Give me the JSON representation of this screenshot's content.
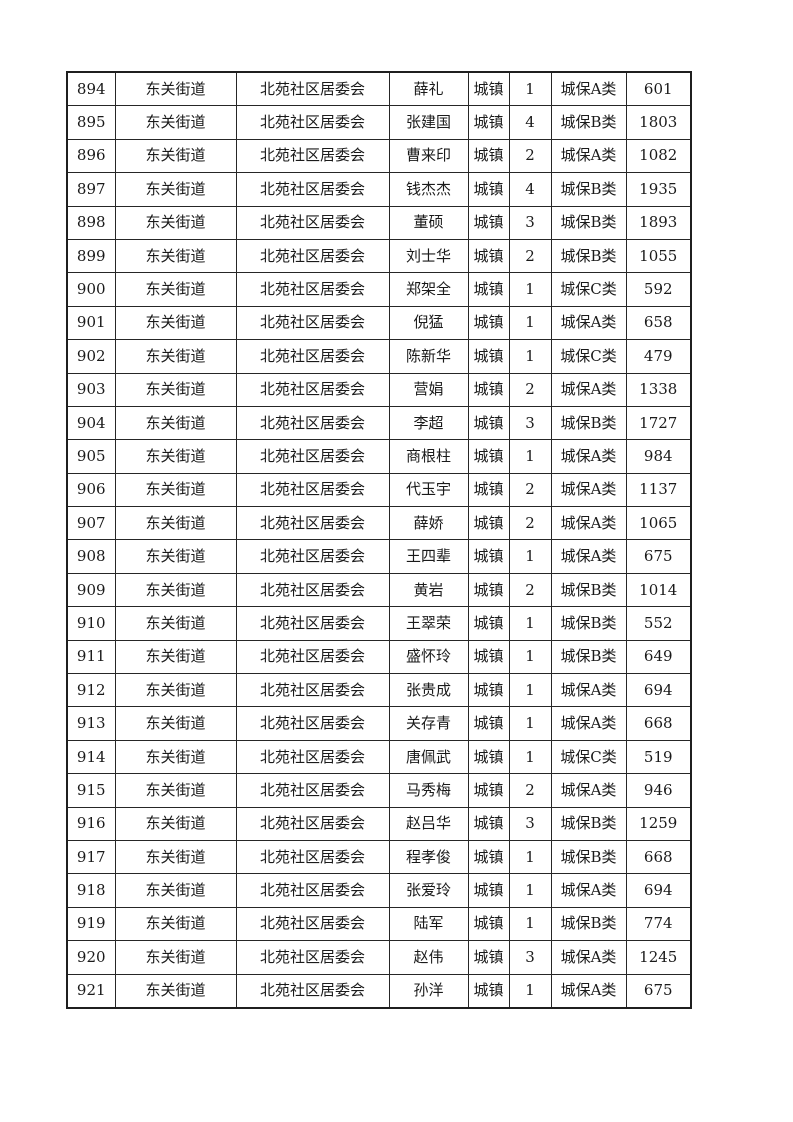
{
  "table": {
    "rows": [
      {
        "cells": [
          "894",
          "东关街道",
          "北苑社区居委会",
          "薛礼",
          "城镇",
          "1",
          "城保A类",
          "601"
        ]
      },
      {
        "cells": [
          "895",
          "东关街道",
          "北苑社区居委会",
          "张建国",
          "城镇",
          "4",
          "城保B类",
          "1803"
        ]
      },
      {
        "cells": [
          "896",
          "东关街道",
          "北苑社区居委会",
          "曹来印",
          "城镇",
          "2",
          "城保A类",
          "1082"
        ]
      },
      {
        "cells": [
          "897",
          "东关街道",
          "北苑社区居委会",
          "钱杰杰",
          "城镇",
          "4",
          "城保B类",
          "1935"
        ]
      },
      {
        "cells": [
          "898",
          "东关街道",
          "北苑社区居委会",
          "董硕",
          "城镇",
          "3",
          "城保B类",
          "1893"
        ]
      },
      {
        "cells": [
          "899",
          "东关街道",
          "北苑社区居委会",
          "刘士华",
          "城镇",
          "2",
          "城保B类",
          "1055"
        ]
      },
      {
        "cells": [
          "900",
          "东关街道",
          "北苑社区居委会",
          "郑架全",
          "城镇",
          "1",
          "城保C类",
          "592"
        ]
      },
      {
        "cells": [
          "901",
          "东关街道",
          "北苑社区居委会",
          "倪猛",
          "城镇",
          "1",
          "城保A类",
          "658"
        ]
      },
      {
        "cells": [
          "902",
          "东关街道",
          "北苑社区居委会",
          "陈新华",
          "城镇",
          "1",
          "城保C类",
          "479"
        ]
      },
      {
        "cells": [
          "903",
          "东关街道",
          "北苑社区居委会",
          "营娟",
          "城镇",
          "2",
          "城保A类",
          "1338"
        ]
      },
      {
        "cells": [
          "904",
          "东关街道",
          "北苑社区居委会",
          "李超",
          "城镇",
          "3",
          "城保B类",
          "1727"
        ]
      },
      {
        "cells": [
          "905",
          "东关街道",
          "北苑社区居委会",
          "商根柱",
          "城镇",
          "1",
          "城保A类",
          "984"
        ]
      },
      {
        "cells": [
          "906",
          "东关街道",
          "北苑社区居委会",
          "代玉宇",
          "城镇",
          "2",
          "城保A类",
          "1137"
        ]
      },
      {
        "cells": [
          "907",
          "东关街道",
          "北苑社区居委会",
          "薛娇",
          "城镇",
          "2",
          "城保A类",
          "1065"
        ]
      },
      {
        "cells": [
          "908",
          "东关街道",
          "北苑社区居委会",
          "王四辈",
          "城镇",
          "1",
          "城保A类",
          "675"
        ]
      },
      {
        "cells": [
          "909",
          "东关街道",
          "北苑社区居委会",
          "黄岩",
          "城镇",
          "2",
          "城保B类",
          "1014"
        ]
      },
      {
        "cells": [
          "910",
          "东关街道",
          "北苑社区居委会",
          "王翠荣",
          "城镇",
          "1",
          "城保B类",
          "552"
        ]
      },
      {
        "cells": [
          "911",
          "东关街道",
          "北苑社区居委会",
          "盛怀玲",
          "城镇",
          "1",
          "城保B类",
          "649"
        ]
      },
      {
        "cells": [
          "912",
          "东关街道",
          "北苑社区居委会",
          "张贵成",
          "城镇",
          "1",
          "城保A类",
          "694"
        ]
      },
      {
        "cells": [
          "913",
          "东关街道",
          "北苑社区居委会",
          "关存青",
          "城镇",
          "1",
          "城保A类",
          "668"
        ]
      },
      {
        "cells": [
          "914",
          "东关街道",
          "北苑社区居委会",
          "唐佩武",
          "城镇",
          "1",
          "城保C类",
          "519"
        ]
      },
      {
        "cells": [
          "915",
          "东关街道",
          "北苑社区居委会",
          "马秀梅",
          "城镇",
          "2",
          "城保A类",
          "946"
        ]
      },
      {
        "cells": [
          "916",
          "东关街道",
          "北苑社区居委会",
          "赵吕华",
          "城镇",
          "3",
          "城保B类",
          "1259"
        ]
      },
      {
        "cells": [
          "917",
          "东关街道",
          "北苑社区居委会",
          "程孝俊",
          "城镇",
          "1",
          "城保B类",
          "668"
        ]
      },
      {
        "cells": [
          "918",
          "东关街道",
          "北苑社区居委会",
          "张爱玲",
          "城镇",
          "1",
          "城保A类",
          "694"
        ]
      },
      {
        "cells": [
          "919",
          "东关街道",
          "北苑社区居委会",
          "陆军",
          "城镇",
          "1",
          "城保B类",
          "774"
        ]
      },
      {
        "cells": [
          "920",
          "东关街道",
          "北苑社区居委会",
          "赵伟",
          "城镇",
          "3",
          "城保A类",
          "1245"
        ]
      },
      {
        "cells": [
          "921",
          "东关街道",
          "北苑社区居委会",
          "孙洋",
          "城镇",
          "1",
          "城保A类",
          "675"
        ]
      }
    ]
  }
}
